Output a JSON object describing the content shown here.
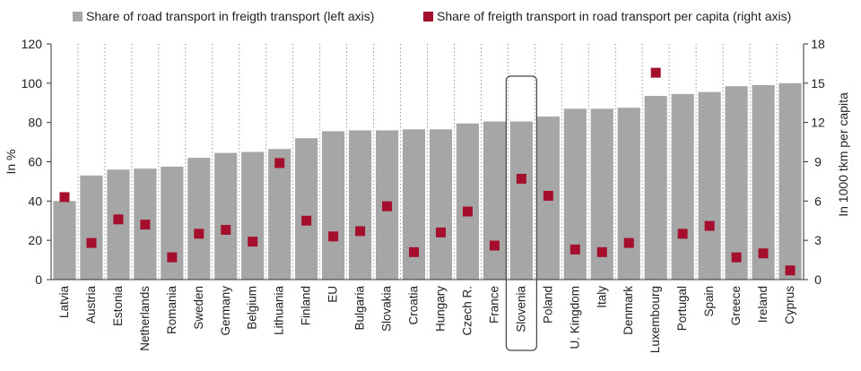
{
  "chart_data": {
    "type": "bar",
    "categories": [
      "Latvia",
      "Austria",
      "Estonia",
      "Netherlands",
      "Romania",
      "Sweden",
      "Germany",
      "Belgium",
      "Lithuania",
      "Finland",
      "EU",
      "Bulgaria",
      "Slovakia",
      "Croatia",
      "Hungary",
      "Czech R.",
      "France",
      "Slovenia",
      "Poland",
      "U. Kingdom",
      "Italy",
      "Denmark",
      "Luxembourg",
      "Portugal",
      "Spain",
      "Greece",
      "Ireland",
      "Cyprus"
    ],
    "series": [
      {
        "name": "Share of road transport in freigth transport (left axis)",
        "type": "bar",
        "axis": "left",
        "color": "#a6a6a6",
        "values": [
          40,
          53,
          56,
          56.5,
          57.5,
          62,
          64.5,
          65,
          66.5,
          72,
          75.5,
          76,
          76,
          76.5,
          76.5,
          79.5,
          80.5,
          80.5,
          83,
          87,
          87,
          87.5,
          93.5,
          94.5,
          95.5,
          98.5,
          99,
          100
        ]
      },
      {
        "name": "Share of freigth transport in road transport per capita (right axis)",
        "type": "scatter",
        "axis": "right",
        "color": "#a50f2d",
        "values": [
          6.3,
          2.8,
          4.6,
          4.2,
          1.7,
          3.5,
          3.8,
          2.9,
          8.9,
          4.5,
          3.3,
          3.7,
          5.6,
          2.1,
          3.6,
          5.2,
          2.6,
          7.7,
          6.4,
          2.3,
          2.1,
          2.8,
          15.8,
          3.5,
          4.1,
          1.7,
          2.0,
          0.7
        ]
      }
    ],
    "y_left": {
      "label": "In %",
      "ylim": [
        0,
        120
      ],
      "ticks": [
        0,
        20,
        40,
        60,
        80,
        100,
        120
      ]
    },
    "y_right": {
      "label": "In 1000 tkm per capita",
      "ylim": [
        0,
        18
      ],
      "ticks": [
        0,
        3,
        6,
        9,
        12,
        15,
        18
      ]
    },
    "highlight_category": "Slovenia",
    "legend_position": "top",
    "grid": "vertical dotted"
  }
}
